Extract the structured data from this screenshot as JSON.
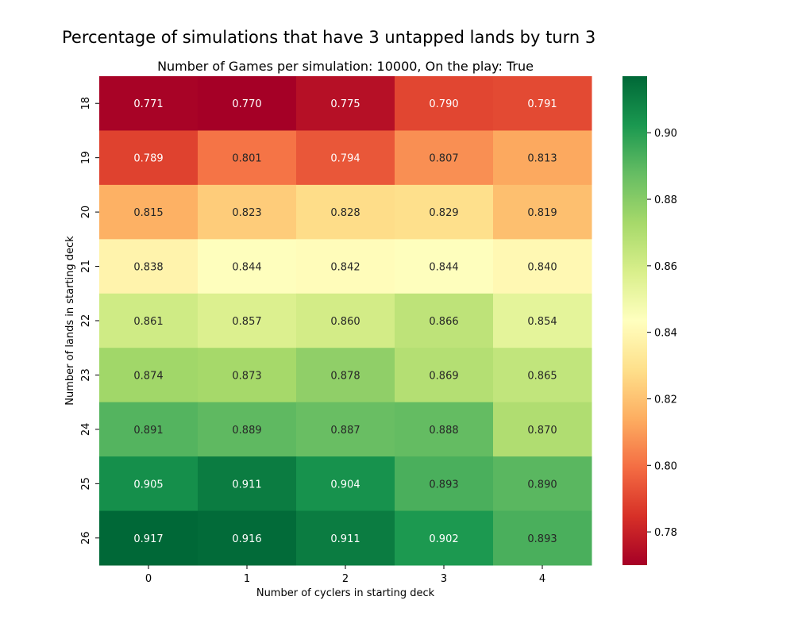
{
  "chart_data": {
    "type": "heatmap",
    "title": "Percentage of simulations that have 3 untapped lands by turn 3",
    "subtitle": "Number of Games per simulation: 10000, On the play: True",
    "xlabel": "Number of cyclers in starting deck",
    "ylabel": "Number of lands in starting deck",
    "x_categories": [
      "0",
      "1",
      "2",
      "3",
      "4"
    ],
    "y_categories": [
      "18",
      "19",
      "20",
      "21",
      "22",
      "23",
      "24",
      "25",
      "26"
    ],
    "values": [
      [
        0.771,
        0.77,
        0.775,
        0.79,
        0.791
      ],
      [
        0.789,
        0.801,
        0.794,
        0.807,
        0.813
      ],
      [
        0.815,
        0.823,
        0.828,
        0.829,
        0.819
      ],
      [
        0.838,
        0.844,
        0.842,
        0.844,
        0.84
      ],
      [
        0.861,
        0.857,
        0.86,
        0.866,
        0.854
      ],
      [
        0.874,
        0.873,
        0.878,
        0.869,
        0.865
      ],
      [
        0.891,
        0.889,
        0.887,
        0.888,
        0.87
      ],
      [
        0.905,
        0.911,
        0.904,
        0.893,
        0.89
      ],
      [
        0.917,
        0.916,
        0.911,
        0.902,
        0.893
      ]
    ],
    "colormap": "RdYlGn",
    "vmin": 0.77,
    "vmax": 0.917,
    "colorbar_ticks": [
      0.78,
      0.8,
      0.82,
      0.84,
      0.86,
      0.88,
      0.9
    ],
    "colorbar_tick_labels": [
      "0.78",
      "0.80",
      "0.82",
      "0.84",
      "0.86",
      "0.88",
      "0.90"
    ]
  }
}
